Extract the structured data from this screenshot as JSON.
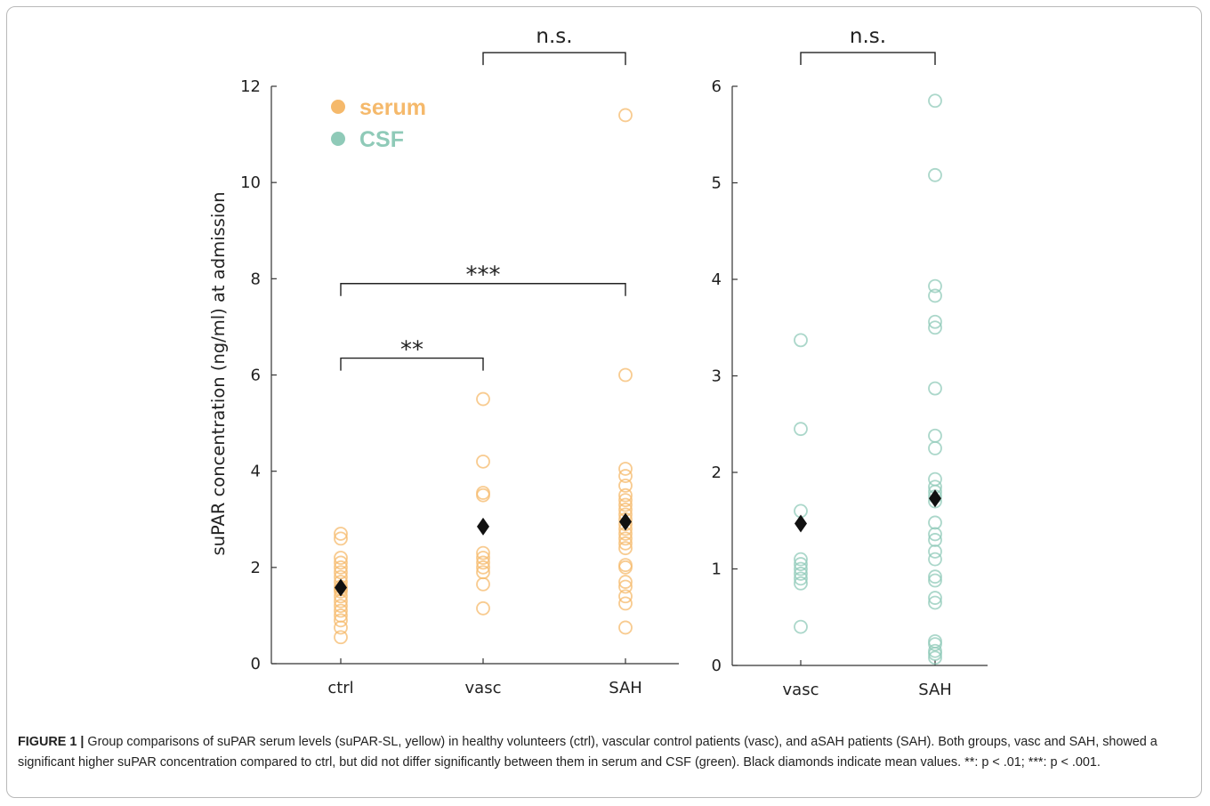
{
  "figure": {
    "caption_lead": "FIGURE 1 |",
    "caption_body": "Group comparisons of suPAR serum levels (suPAR-SL, yellow) in healthy volunteers (ctrl), vascular control patients (vasc), and aSAH patients (SAH). Both groups, vasc and SAH, showed a significant higher suPAR concentration compared to ctrl, but did not differ significantly between them in serum and CSF (green). Black diamonds indicate mean values. **: p < .01; ***: p < .001."
  },
  "chart_data": [
    {
      "type": "scatter",
      "title": "",
      "xlabel": "",
      "ylabel": "suPAR concentration (ng/ml) at admission",
      "categories": [
        "ctrl",
        "vasc",
        "SAH"
      ],
      "ylim": [
        0,
        12
      ],
      "yticks": [
        0,
        2,
        4,
        6,
        8,
        10,
        12
      ],
      "grid": false,
      "legend": {
        "position": "top-left",
        "entries": [
          {
            "label": "serum",
            "color": "#f5b96b"
          },
          {
            "label": "CSF",
            "color": "#8fcab8"
          }
        ]
      },
      "series": [
        {
          "name": "serum",
          "color": "#f5b96b",
          "points": {
            "ctrl": [
              0.55,
              0.75,
              0.9,
              1.0,
              1.1,
              1.2,
              1.3,
              1.4,
              1.5,
              1.55,
              1.6,
              1.7,
              1.8,
              1.9,
              2.0,
              2.1,
              2.2,
              2.6,
              2.7
            ],
            "vasc": [
              1.15,
              1.65,
              1.9,
              2.0,
              2.1,
              2.2,
              2.3,
              3.5,
              3.55,
              4.2,
              5.5
            ],
            "SAH": [
              0.75,
              1.25,
              1.4,
              1.6,
              1.7,
              2.0,
              2.05,
              2.4,
              2.5,
              2.6,
              2.7,
              2.8,
              2.9,
              3.0,
              3.1,
              3.2,
              3.3,
              3.4,
              3.5,
              3.7,
              3.9,
              4.05,
              6.0,
              11.4
            ]
          }
        }
      ],
      "means": [
        {
          "category": "ctrl",
          "value": 1.58
        },
        {
          "category": "vasc",
          "value": 2.85
        },
        {
          "category": "SAH",
          "value": 2.95
        }
      ],
      "significance": [
        {
          "from": "ctrl",
          "to": "vasc",
          "level": 6.35,
          "label": "**"
        },
        {
          "from": "ctrl",
          "to": "SAH",
          "level": 7.9,
          "label": "***"
        },
        {
          "from": "vasc",
          "to": "SAH",
          "level": 12.7,
          "label": "n.s."
        }
      ]
    },
    {
      "type": "scatter",
      "title": "",
      "xlabel": "",
      "ylabel": "",
      "categories": [
        "vasc",
        "SAH"
      ],
      "ylim": [
        0,
        6
      ],
      "yticks": [
        0,
        1,
        2,
        3,
        4,
        5,
        6
      ],
      "grid": false,
      "series": [
        {
          "name": "CSF",
          "color": "#8fcab8",
          "points": {
            "vasc": [
              0.4,
              0.85,
              0.9,
              0.95,
              1.0,
              1.05,
              1.1,
              1.6,
              2.45,
              3.37
            ],
            "SAH": [
              0.08,
              0.12,
              0.15,
              0.22,
              0.25,
              0.65,
              0.7,
              0.88,
              0.92,
              1.1,
              1.18,
              1.3,
              1.36,
              1.48,
              1.7,
              1.75,
              1.8,
              1.85,
              1.93,
              2.25,
              2.38,
              2.87,
              3.5,
              3.56,
              3.83,
              3.93,
              5.08,
              5.85
            ]
          }
        }
      ],
      "means": [
        {
          "category": "vasc",
          "value": 1.47
        },
        {
          "category": "SAH",
          "value": 1.73
        }
      ],
      "significance": [
        {
          "from": "vasc",
          "to": "SAH",
          "level": 6.35,
          "label": "n.s."
        }
      ]
    }
  ]
}
